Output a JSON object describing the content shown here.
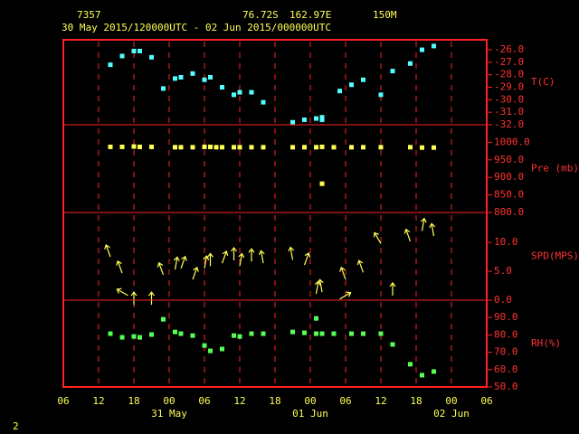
{
  "header": {
    "station": "7357",
    "latitude": "76.72S",
    "longitude": "162.97E",
    "elevation": "150M",
    "period": "30 May 2015/120000UTC - 02 Jun 2015/000000UTC"
  },
  "page_number": "2",
  "chart_data": [
    {
      "type": "scatter",
      "ylabel": "T(C)",
      "color": "#55ffff",
      "x": [
        14,
        16,
        18,
        19,
        21,
        23,
        25,
        26,
        28,
        30,
        31,
        33,
        35,
        36,
        38,
        40,
        45,
        47,
        49,
        50,
        50,
        53,
        55,
        57,
        60,
        62,
        65,
        67,
        69
      ],
      "values": [
        -27.2,
        -26.5,
        -26.1,
        -26.1,
        -26.6,
        -29.1,
        -28.3,
        -28.2,
        -27.9,
        -28.4,
        -28.2,
        -29.0,
        -29.6,
        -29.4,
        -29.4,
        -30.2,
        -31.8,
        -31.6,
        -31.5,
        -31.6,
        -31.4,
        -29.3,
        -28.8,
        -28.4,
        -29.6,
        -27.7,
        -27.1,
        -26.0,
        -25.7
      ],
      "ylim": [
        -32,
        -25.2
      ],
      "yticks": [
        {
          "value": -26,
          "label": "-26.0"
        },
        {
          "value": -27,
          "label": "-27.0"
        },
        {
          "value": -28,
          "label": "-28.0"
        },
        {
          "value": -29,
          "label": "-29.0"
        },
        {
          "value": -30,
          "label": "-30.0"
        },
        {
          "value": -31,
          "label": "-31.0"
        },
        {
          "value": -32,
          "label": "-32.0"
        }
      ]
    },
    {
      "type": "scatter",
      "ylabel": "Pre (mb)",
      "color": "#ffff55",
      "x": [
        14,
        16,
        18,
        19,
        21,
        25,
        26,
        28,
        30,
        31,
        32,
        33,
        35,
        36,
        38,
        40,
        45,
        47,
        49,
        50,
        50,
        52,
        55,
        57,
        60,
        65,
        67,
        69
      ],
      "values": [
        987,
        987,
        988,
        987,
        987,
        986,
        986,
        986,
        987,
        987,
        986,
        986,
        986,
        986,
        986,
        986,
        986,
        986,
        986,
        987,
        882,
        986,
        986,
        986,
        986,
        986,
        985,
        985
      ],
      "ylim": [
        800,
        1050
      ],
      "yticks": [
        {
          "value": 1000,
          "label": "1000.0"
        },
        {
          "value": 950,
          "label": "950.0"
        },
        {
          "value": 900,
          "label": "900.0"
        },
        {
          "value": 850,
          "label": "850.0"
        },
        {
          "value": 800,
          "label": "800.0"
        }
      ]
    },
    {
      "type": "arrow",
      "ylabel": "SPD(MPS)",
      "color": "#ffff55",
      "x": [
        14,
        16,
        17,
        18,
        21,
        23,
        25,
        26,
        28,
        30,
        31,
        33,
        35,
        36,
        38,
        40,
        45,
        47,
        49,
        50,
        53,
        54,
        57,
        60,
        62,
        65,
        67,
        69
      ],
      "values": [
        8.6,
        5.8,
        1.9,
        0.3,
        0.3,
        5.5,
        6.4,
        6.6,
        4.7,
        6.6,
        7.0,
        7.5,
        8.0,
        7.0,
        7.8,
        7.5,
        8.1,
        7.2,
        2.2,
        2.5,
        1.3,
        4.7,
        5.9,
        10.9,
        1.9,
        11.3,
        13.1,
        12.2
      ],
      "directions": [
        -20,
        -20,
        -60,
        0,
        0,
        -20,
        10,
        20,
        20,
        10,
        0,
        20,
        0,
        10,
        0,
        -10,
        -10,
        20,
        10,
        -10,
        60,
        -20,
        -20,
        -30,
        0,
        -20,
        10,
        -10
      ],
      "ylim": [
        0,
        15.2
      ],
      "yticks": [
        {
          "value": 10,
          "label": "10.0"
        },
        {
          "value": 5,
          "label": "5.0"
        },
        {
          "value": 0,
          "label": "0.0"
        }
      ]
    },
    {
      "type": "scatter",
      "ylabel": "RH(%)",
      "color": "#55ff55",
      "x": [
        14,
        16,
        18,
        19,
        21,
        23,
        25,
        26,
        28,
        30,
        31,
        33,
        35,
        36,
        38,
        40,
        45,
        47,
        49,
        49,
        50,
        52,
        55,
        57,
        60,
        62,
        65,
        67,
        69
      ],
      "values": [
        80.7,
        78.6,
        79.1,
        78.6,
        80.2,
        89.0,
        81.7,
        80.7,
        79.6,
        73.9,
        70.8,
        71.9,
        79.6,
        79.1,
        80.7,
        80.7,
        81.7,
        81.2,
        89.5,
        80.7,
        80.7,
        80.7,
        80.7,
        80.7,
        80.7,
        74.5,
        63.1,
        56.8,
        58.9
      ],
      "ylim": [
        50,
        100
      ],
      "yticks": [
        {
          "value": 90,
          "label": "90.0"
        },
        {
          "value": 80,
          "label": "80.0"
        },
        {
          "value": 70,
          "label": "70.0"
        },
        {
          "value": 60,
          "label": "60.0"
        },
        {
          "value": 50,
          "label": "50.0"
        }
      ],
      "xlim": [
        6,
        78
      ],
      "xticks": [
        {
          "value": 6,
          "label": "06"
        },
        {
          "value": 12,
          "label": "12"
        },
        {
          "value": 18,
          "label": "18"
        },
        {
          "value": 24,
          "label": "00"
        },
        {
          "value": 30,
          "label": "06"
        },
        {
          "value": 36,
          "label": "12"
        },
        {
          "value": 42,
          "label": "18"
        },
        {
          "value": 48,
          "label": "00"
        },
        {
          "value": 54,
          "label": "06"
        },
        {
          "value": 60,
          "label": "12"
        },
        {
          "value": 66,
          "label": "18"
        },
        {
          "value": 72,
          "label": "00"
        },
        {
          "value": 78,
          "label": "06"
        }
      ],
      "date_ticks": [
        {
          "value": 24,
          "label": "31 May"
        },
        {
          "value": 48,
          "label": "01 Jun"
        },
        {
          "value": 72,
          "label": "02 Jun"
        }
      ]
    }
  ]
}
